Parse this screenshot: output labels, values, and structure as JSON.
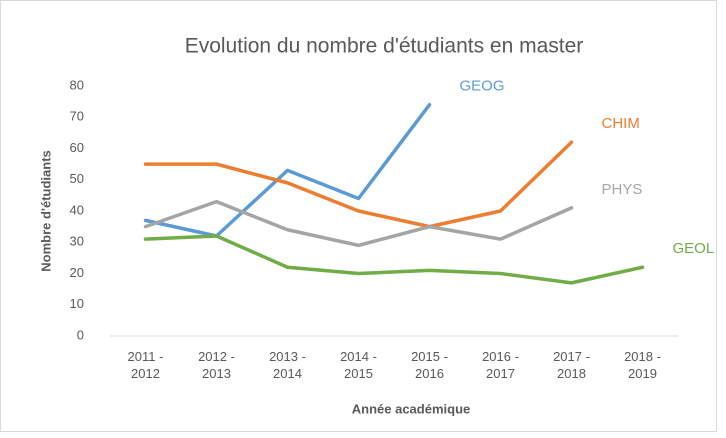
{
  "chart_data": {
    "type": "line",
    "title": "Evolution du nombre d'étudiants en master",
    "x_label": "Année académique",
    "y_label": "Nombre d'étudiants",
    "categories": [
      "2011 - 2012",
      "2012 - 2013",
      "2013 - 2014",
      "2014 - 2015",
      "2015 - 2016",
      "2016 - 2017",
      "2017 - 2018",
      "2018 - 2019"
    ],
    "series": [
      {
        "name": "GEOG",
        "color": "#5b9bd5",
        "values": [
          37,
          32,
          53,
          44,
          74,
          null,
          null,
          null
        ]
      },
      {
        "name": "CHIM",
        "color": "#ed7d31",
        "values": [
          55,
          55,
          49,
          40,
          35,
          40,
          62,
          null
        ]
      },
      {
        "name": "PHYS",
        "color": "#a5a5a5",
        "values": [
          35,
          43,
          34,
          29,
          35,
          31,
          41,
          null
        ]
      },
      {
        "name": "GEOL",
        "color": "#70ad47",
        "values": [
          31,
          32,
          22,
          20,
          21,
          20,
          17,
          22
        ]
      }
    ],
    "ylim": [
      0,
      80
    ],
    "yticks": [
      0,
      10,
      20,
      30,
      40,
      50,
      60,
      70,
      80
    ],
    "grid": false
  }
}
